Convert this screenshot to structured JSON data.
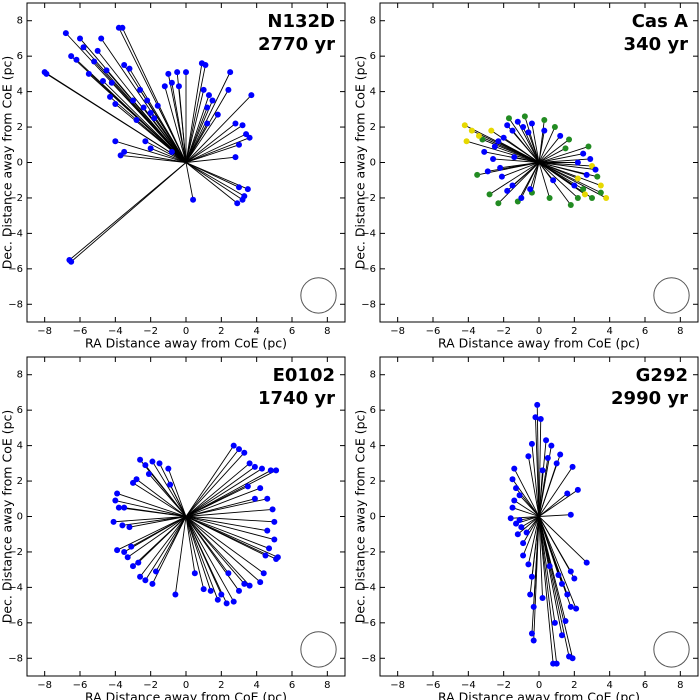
{
  "chart_data": [
    {
      "type": "scatter",
      "title": "N132D",
      "subtitle": "2770 yr",
      "xlabel": "RA Distance away from CoE (pc)",
      "ylabel": "Dec. Distance away from CoE (pc)",
      "xlim": [
        -9,
        9
      ],
      "ylim": [
        -9,
        9
      ],
      "xticks": [
        {
          "value": -8,
          "label": "−8"
        },
        {
          "value": -6,
          "label": "−6"
        },
        {
          "value": -4,
          "label": "−4"
        },
        {
          "value": -2,
          "label": "−2"
        },
        0,
        2,
        4,
        6,
        8
      ],
      "yticks": [
        {
          "value": -8,
          "label": "−8"
        },
        {
          "value": -6,
          "label": "−6"
        },
        {
          "value": -4,
          "label": "−4"
        },
        {
          "value": -2,
          "label": "−2"
        },
        0,
        2,
        4,
        6,
        8
      ],
      "beam": {
        "x": 7.5,
        "y": -7.5,
        "r": 1
      },
      "series": [
        {
          "color": "#0000ff",
          "x": [
            -8,
            -7.9,
            -6.6,
            -6.5,
            -6.8,
            -6.5,
            -6.2,
            -6,
            -5.8,
            -5.5,
            -5.2,
            -5,
            -4.8,
            -4.7,
            -4.5,
            -4.3,
            -4.2,
            -4,
            -3.8,
            -3.6,
            -3.5,
            -3.2,
            -3,
            -2.8,
            -2.6,
            -2.4,
            -2.2,
            -2,
            -1.8,
            -1.6,
            -1.2,
            -1,
            -0.8,
            -0.5,
            -0.4,
            0,
            -4,
            -3.5,
            -3.7,
            -2.3,
            -2,
            -0.8,
            0.9,
            1.1,
            1,
            1.2,
            1.3,
            1.5,
            1.8,
            1.2,
            2.4,
            2.5,
            3.7,
            2.8,
            3.2,
            3.4,
            3,
            3.6,
            2.8,
            0.4,
            3,
            3.5,
            3.3,
            2.9,
            3.2
          ],
          "y": [
            5.1,
            5,
            -5.5,
            -5.6,
            7.3,
            6,
            5.8,
            7,
            6.5,
            5,
            5.7,
            6.3,
            7,
            4.6,
            5.2,
            3.7,
            4.5,
            3.3,
            7.6,
            7.6,
            5.5,
            5.3,
            3.5,
            2.4,
            4.1,
            3.1,
            3.5,
            2.8,
            2.5,
            3.2,
            4.3,
            5,
            4.5,
            5.1,
            4.3,
            5.1,
            1.2,
            0.6,
            0.4,
            1.2,
            0.8,
            0.6,
            5.6,
            5.5,
            4.1,
            3.1,
            3.8,
            3.5,
            2.7,
            2.2,
            4.1,
            5.1,
            3.8,
            2.2,
            2.1,
            1.6,
            1,
            1.4,
            0.3,
            -2.1,
            -1.4,
            -1.5,
            -1.9,
            -2.3,
            -2.1
          ]
        }
      ]
    },
    {
      "type": "scatter",
      "title": "Cas A",
      "subtitle": "340 yr",
      "xlabel": "RA Distance away from CoE (pc)",
      "ylabel": "Dec. Distance away from CoE (pc)",
      "xlim": [
        -9,
        9
      ],
      "ylim": [
        -9,
        9
      ],
      "xticks": [
        {
          "value": -8,
          "label": "−8"
        },
        {
          "value": -6,
          "label": "−6"
        },
        {
          "value": -4,
          "label": "−4"
        },
        {
          "value": -2,
          "label": "−2"
        },
        0,
        2,
        4,
        6,
        8
      ],
      "yticks": [
        {
          "value": -8,
          "label": "−8"
        },
        {
          "value": -6,
          "label": "−6"
        },
        {
          "value": -4,
          "label": "−4"
        },
        {
          "value": -2,
          "label": "−2"
        },
        0,
        2,
        4,
        6,
        8
      ],
      "beam": {
        "x": 7.5,
        "y": -7.5,
        "r": 1
      },
      "series": [
        {
          "color": "#228b22",
          "x": [
            -3.5,
            -2.8,
            -2.3,
            -1.7,
            -0.8,
            0.3,
            0.9,
            1.7,
            3.3,
            3.5,
            3.0,
            2.2,
            1.8,
            -0.4,
            -3.2,
            0.6,
            1.5,
            2.8,
            -1.2,
            2.5
          ],
          "y": [
            -0.7,
            -1.8,
            -2.3,
            2.5,
            2.6,
            2.4,
            2.0,
            1.3,
            -0.8,
            -1.7,
            -2.0,
            -2.0,
            -2.4,
            -1.7,
            1.3,
            -2.0,
            0.8,
            0.9,
            -2.2,
            -1.5
          ]
        },
        {
          "color": "#e6d800",
          "x": [
            -4.2,
            -3.8,
            -3.4,
            -4.1,
            3.0,
            3.5,
            3.8,
            2.6,
            -2.7,
            2.2
          ],
          "y": [
            2.1,
            1.8,
            1.5,
            1.2,
            -0.2,
            -1.3,
            -2.0,
            -1.8,
            1.8,
            -0.9
          ]
        },
        {
          "color": "#0000ff",
          "x": [
            -2.3,
            -2.5,
            -2,
            -1.8,
            -1.5,
            -1.2,
            -0.9,
            -0.6,
            -0.4,
            -2.6,
            -2.2,
            -2.1,
            -1.8,
            -1.5,
            -2.9,
            -1,
            -0.5,
            2.5,
            2.9,
            3.2,
            2.2,
            2.7,
            -3.1,
            -1.4,
            0.8,
            2,
            1.2,
            0.3
          ],
          "y": [
            1.2,
            0.9,
            1.4,
            2.1,
            1.8,
            2.3,
            2.0,
            1.7,
            2.2,
            0.2,
            -0.3,
            -0.8,
            -1.6,
            -1.3,
            -0.5,
            -2.0,
            -1.5,
            0.5,
            0.2,
            -0.4,
            0.0,
            -0.7,
            0.6,
            0.3,
            -1,
            -1.3,
            1.5,
            1.8
          ]
        }
      ]
    },
    {
      "type": "scatter",
      "title": "E0102",
      "subtitle": "1740 yr",
      "xlabel": "RA Distance away from CoE (pc)",
      "ylabel": "Dec. Distance away from CoE (pc)",
      "xlim": [
        -9,
        9
      ],
      "ylim": [
        -9,
        9
      ],
      "xticks": [
        {
          "value": -8,
          "label": "−8"
        },
        {
          "value": -6,
          "label": "−6"
        },
        {
          "value": -4,
          "label": "−4"
        },
        {
          "value": -2,
          "label": "−2"
        },
        0,
        2,
        4,
        6,
        8
      ],
      "yticks": [
        {
          "value": -8,
          "label": "−8"
        },
        {
          "value": -6,
          "label": "−6"
        },
        {
          "value": -4,
          "label": "−4"
        },
        {
          "value": -2,
          "label": "−2"
        },
        0,
        2,
        4,
        6,
        8
      ],
      "beam": {
        "x": 7.5,
        "y": -7.5,
        "r": 1
      },
      "series": [
        {
          "color": "#0000ff",
          "x": [
            -3.9,
            -4,
            -3.8,
            -3.5,
            -4.1,
            -3.6,
            -3.2,
            -3.9,
            -3.5,
            -3.3,
            -3.1,
            -3,
            -2.7,
            -2.6,
            -2.3,
            -1.9,
            -1.7,
            -0.6,
            -2.3,
            -2.6,
            -1.9,
            -2.1,
            -1.5,
            -1.0,
            -0.9,
            -3.0,
            -2.8,
            2.7,
            3.0,
            3.3,
            3.6,
            3.9,
            4.3,
            4.8,
            5.1,
            4.2,
            3.9,
            4.6,
            4.9,
            5.0,
            4.6,
            5.0,
            4.7,
            5.1,
            5.2,
            4.5,
            4.4,
            4.2,
            3.6,
            3.3,
            2.7,
            2.3,
            2.0,
            1.8,
            1.4,
            1.0,
            3.0,
            2.4,
            0.5,
            3.5
          ],
          "y": [
            1.3,
            0.9,
            0.5,
            0.5,
            -0.3,
            -0.5,
            -0.6,
            -1.9,
            -2,
            -2.3,
            -1.7,
            -2.8,
            -2.6,
            -3.4,
            -3.6,
            -3.8,
            -3.1,
            -4.4,
            2.9,
            3.2,
            3.1,
            2.4,
            3.0,
            2.7,
            1.8,
            1.9,
            2.1,
            4.0,
            3.8,
            3.6,
            3.0,
            2.8,
            2.7,
            2.6,
            2.6,
            1.6,
            1.0,
            1.0,
            0.4,
            -0.3,
            -0.8,
            -1.3,
            -1.8,
            -2.4,
            -2.3,
            -2.2,
            -3.2,
            -3.7,
            -3.9,
            -3.8,
            -4.8,
            -4.9,
            -4.4,
            -4.7,
            -4.2,
            -4.1,
            -4.2,
            -3.2,
            -3.2,
            1.7
          ]
        }
      ]
    },
    {
      "type": "scatter",
      "title": "G292",
      "subtitle": "2990 yr",
      "xlabel": "RA Distance away from CoE (pc)",
      "ylabel": "Dec. Distance away from CoE (pc)",
      "xlim": [
        -9,
        9
      ],
      "ylim": [
        -9,
        9
      ],
      "xticks": [
        {
          "value": -8,
          "label": "−8"
        },
        {
          "value": -6,
          "label": "−6"
        },
        {
          "value": -4,
          "label": "−4"
        },
        {
          "value": -2,
          "label": "−2"
        },
        0,
        2,
        4,
        6,
        8
      ],
      "yticks": [
        {
          "value": -8,
          "label": "−8"
        },
        {
          "value": -6,
          "label": "−6"
        },
        {
          "value": -4,
          "label": "−4"
        },
        {
          "value": -2,
          "label": "−2"
        },
        0,
        2,
        4,
        6,
        8
      ],
      "beam": {
        "x": 7.5,
        "y": -7.5,
        "r": 1
      },
      "series": [
        {
          "color": "#0000ff",
          "x": [
            -0.1,
            -0.2,
            0.1,
            0.4,
            0.7,
            0.5,
            -0.4,
            -0.6,
            0.2,
            1.2,
            1.0,
            1.9,
            2.2,
            1.6,
            1.8,
            -1.4,
            -1.5,
            -1.3,
            -1.1,
            -1.4,
            -1.5,
            -1.6,
            -1.3,
            -1.0,
            -0.7,
            -1.2,
            -0.9,
            -0.9,
            -0.6,
            -0.4,
            -0.5,
            -0.3,
            -0.4,
            -0.3,
            0.8,
            1.0,
            1.7,
            1.9,
            1.3,
            1.5,
            1.8,
            2.1,
            1.6,
            2.0,
            2.7,
            1.8,
            1.1,
            0.6,
            0.2,
            0.9,
            -1.1,
            1.3
          ],
          "y": [
            6.3,
            5.6,
            5.5,
            4.3,
            4.0,
            3.3,
            4.1,
            3.4,
            2.6,
            3.5,
            3.0,
            2.8,
            1.5,
            1.3,
            0.1,
            2.7,
            2.1,
            1.6,
            1.2,
            0.9,
            0.5,
            -0.1,
            -0.4,
            -0.6,
            -0.9,
            -1.0,
            -1.5,
            -2.2,
            -2.7,
            -3.4,
            -4.4,
            -5.1,
            -6.6,
            -7.0,
            -8.3,
            -8.3,
            -7.9,
            -8.0,
            -6.7,
            -5.9,
            -5.1,
            -5.2,
            -4.4,
            -3.5,
            -2.6,
            -3.1,
            -3.3,
            -2.8,
            -4.6,
            -6.0,
            -0.2,
            -3.8
          ]
        }
      ]
    }
  ]
}
